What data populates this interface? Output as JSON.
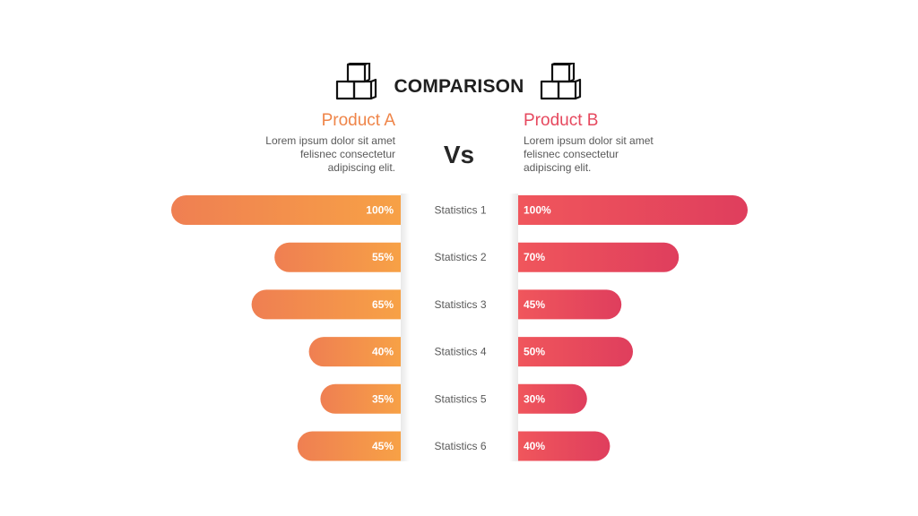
{
  "slide": {
    "title": "COMPARISON",
    "vs_label": "Vs",
    "product_a": {
      "name": "Product A",
      "desc_line1": "Lorem ipsum dolor sit amet",
      "desc_line2": "felisnec consectetur",
      "desc_line3": "adipiscing elit."
    },
    "product_b": {
      "name": "Product B",
      "desc_line1": "Lorem ipsum dolor sit amet",
      "desc_line2": "felisnec consectetur",
      "desc_line3": "adipiscing elit."
    },
    "icons": {
      "left": "cubes-icon",
      "right": "cubes-icon"
    }
  },
  "colors": {
    "product_a_start": "#ef7f52",
    "product_a_end": "#f7a146",
    "product_b_start": "#f0565c",
    "product_b_end": "#df3e5d",
    "product_a_text": "#ef8549",
    "product_b_text": "#e6485e"
  },
  "chart_data": {
    "type": "bar",
    "orientation": "horizontal-diverging",
    "categories": [
      "Statistics 1",
      "Statistics 2",
      "Statistics 3",
      "Statistics 4",
      "Statistics 5",
      "Statistics 6"
    ],
    "series": [
      {
        "name": "Product A",
        "side": "left",
        "values": [
          100,
          55,
          65,
          40,
          35,
          45
        ],
        "labels": [
          "100%",
          "55%",
          "65%",
          "40%",
          "35%",
          "45%"
        ]
      },
      {
        "name": "Product B",
        "side": "right",
        "values": [
          100,
          70,
          45,
          50,
          30,
          40
        ],
        "labels": [
          "100%",
          "70%",
          "45%",
          "50%",
          "30%",
          "40%"
        ]
      }
    ],
    "xlim": [
      0,
      100
    ],
    "grid": false,
    "legend": "none"
  }
}
